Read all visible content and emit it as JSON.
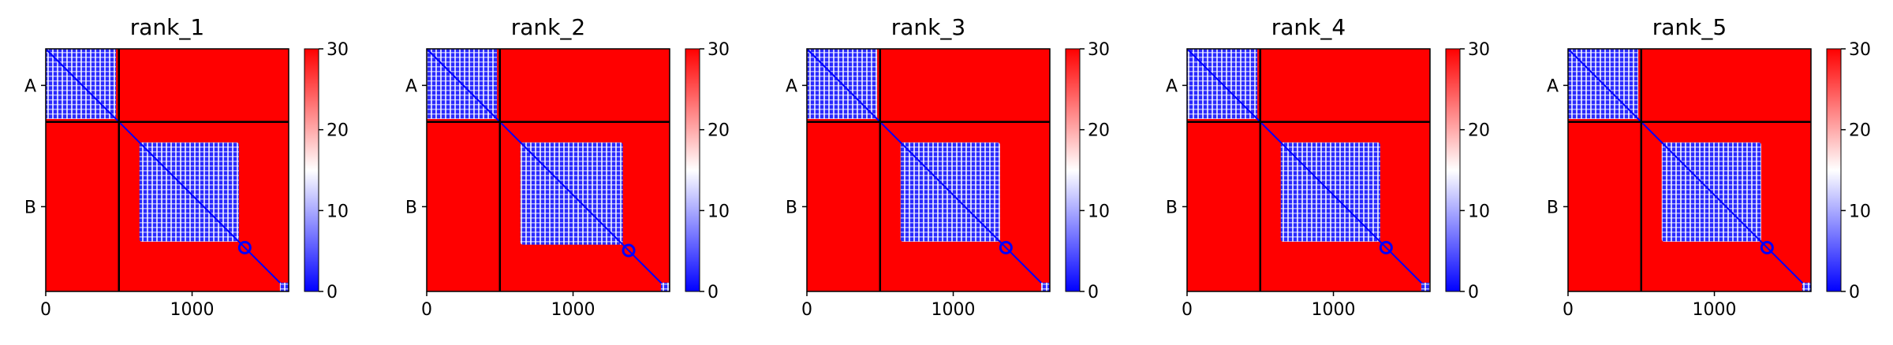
{
  "chart_data": [
    {
      "type": "heatmap",
      "title": "rank_1",
      "xlabel": "",
      "ylabel": "",
      "x_ticks": [
        0,
        1000
      ],
      "y_tick_labels": [
        "A",
        "B"
      ],
      "chain_boundaries": [
        0,
        500,
        1660
      ],
      "xlim": [
        0,
        1660
      ],
      "colorbar": {
        "ticks": [
          0,
          10,
          20,
          30
        ],
        "range": [
          0,
          30
        ],
        "colormap": "bwr"
      },
      "block_a": [
        0,
        480
      ],
      "block_b": [
        640,
        1320
      ],
      "tail": 1300
    },
    {
      "type": "heatmap",
      "title": "rank_2",
      "xlabel": "",
      "ylabel": "",
      "x_ticks": [
        0,
        1000
      ],
      "y_tick_labels": [
        "A",
        "B"
      ],
      "chain_boundaries": [
        0,
        500,
        1660
      ],
      "xlim": [
        0,
        1660
      ],
      "colorbar": {
        "ticks": [
          0,
          10,
          20,
          30
        ],
        "range": [
          0,
          30
        ],
        "colormap": "bwr"
      },
      "block_a": [
        0,
        480
      ],
      "block_b": [
        640,
        1340
      ],
      "tail": 1320
    },
    {
      "type": "heatmap",
      "title": "rank_3",
      "xlabel": "",
      "ylabel": "",
      "x_ticks": [
        0,
        1000
      ],
      "y_tick_labels": [
        "A",
        "B"
      ],
      "chain_boundaries": [
        0,
        500,
        1660
      ],
      "xlim": [
        0,
        1660
      ],
      "colorbar": {
        "ticks": [
          0,
          10,
          20,
          30
        ],
        "range": [
          0,
          30
        ],
        "colormap": "bwr"
      },
      "block_a": [
        0,
        480
      ],
      "block_b": [
        640,
        1320
      ],
      "tail": 1300
    },
    {
      "type": "heatmap",
      "title": "rank_4",
      "xlabel": "",
      "ylabel": "",
      "x_ticks": [
        0,
        1000
      ],
      "y_tick_labels": [
        "A",
        "B"
      ],
      "chain_boundaries": [
        0,
        500,
        1660
      ],
      "xlim": [
        0,
        1660
      ],
      "colorbar": {
        "ticks": [
          0,
          10,
          20,
          30
        ],
        "range": [
          0,
          30
        ],
        "colormap": "bwr"
      },
      "block_a": [
        0,
        480
      ],
      "block_b": [
        640,
        1320
      ],
      "tail": 1300
    },
    {
      "type": "heatmap",
      "title": "rank_5",
      "xlabel": "",
      "ylabel": "",
      "x_ticks": [
        0,
        1000
      ],
      "y_tick_labels": [
        "A",
        "B"
      ],
      "chain_boundaries": [
        0,
        500,
        1660
      ],
      "xlim": [
        0,
        1660
      ],
      "colorbar": {
        "ticks": [
          0,
          10,
          20,
          30
        ],
        "range": [
          0,
          30
        ],
        "colormap": "bwr"
      },
      "block_a": [
        0,
        480
      ],
      "block_b": [
        640,
        1320
      ],
      "tail": 1300
    }
  ],
  "colors": {
    "low": "#0000ff",
    "mid": "#ffffff",
    "high": "#ff0000",
    "frame": "#000000"
  }
}
